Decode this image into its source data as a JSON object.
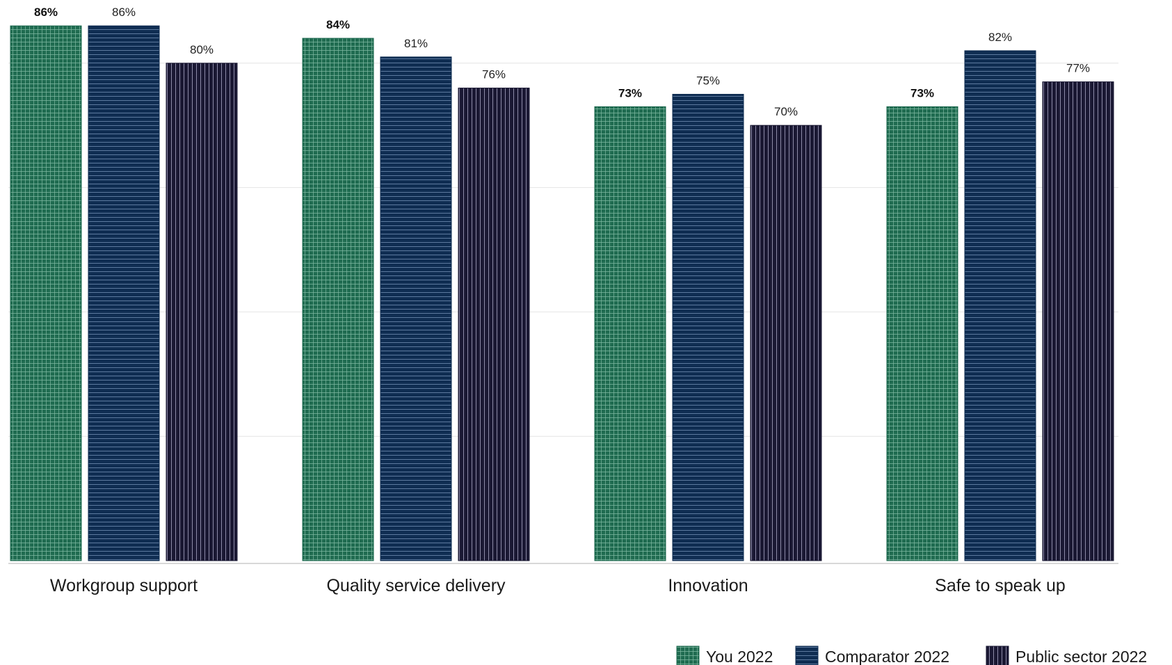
{
  "chart_data": {
    "type": "bar",
    "categories": [
      "Workgroup support",
      "Quality service delivery",
      "Innovation",
      "Safe to speak up"
    ],
    "series": [
      {
        "name": "You 2022",
        "values": [
          86,
          84,
          73,
          73
        ],
        "labels": [
          "86%",
          "84%",
          "73%",
          "73%"
        ],
        "color": "#1f6b50",
        "pattern": "grid",
        "bold_labels": true
      },
      {
        "name": "Comparator 2022",
        "values": [
          86,
          81,
          75,
          82
        ],
        "labels": [
          "86%",
          "81%",
          "75%",
          "82%"
        ],
        "color": "#0f2d52",
        "pattern": "horizontal",
        "bold_labels": false
      },
      {
        "name": "Public sector 2022",
        "values": [
          80,
          76,
          70,
          77
        ],
        "labels": [
          "80%",
          "76%",
          "70%",
          "77%"
        ],
        "color": "#1a1833",
        "pattern": "vertical",
        "bold_labels": false
      }
    ],
    "ylim": [
      0,
      90
    ],
    "grid": true,
    "legend": "bottom-right",
    "title": "",
    "xlabel": "",
    "ylabel": ""
  }
}
